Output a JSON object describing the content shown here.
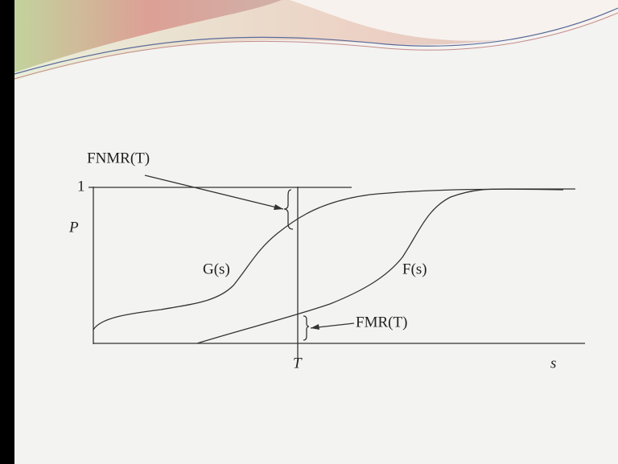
{
  "diagram": {
    "labels": {
      "fnmr": "FNMR(T)",
      "one": "1",
      "p_axis": "P",
      "g_curve": "G(s)",
      "f_curve": "F(s)",
      "fmr": "FMR(T)",
      "threshold": "T",
      "s_axis": "s"
    }
  }
}
